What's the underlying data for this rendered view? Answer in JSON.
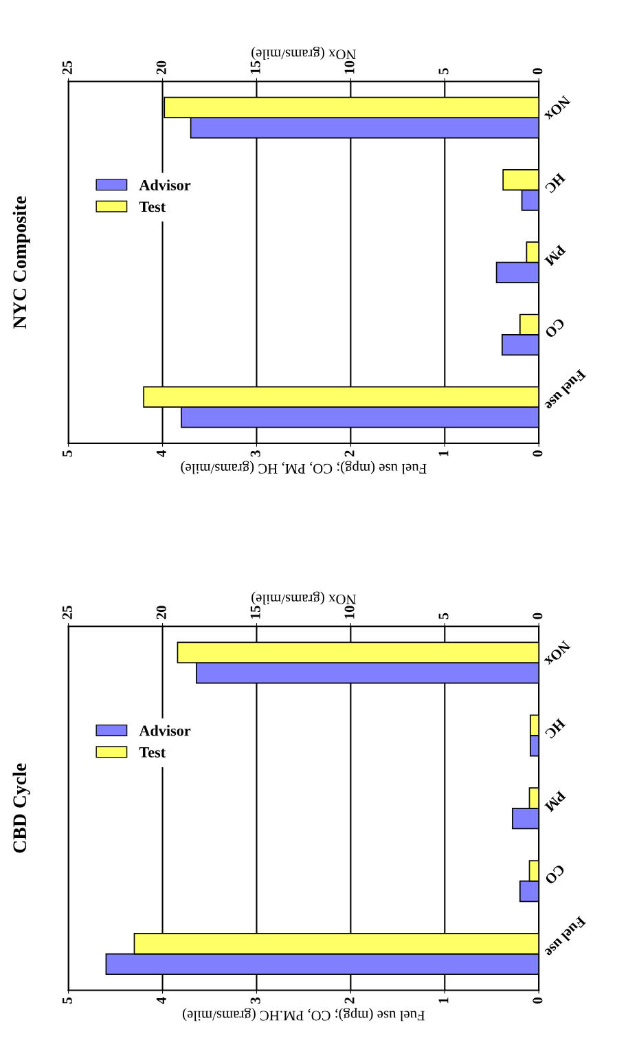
{
  "chart_data": [
    {
      "type": "bar",
      "orientation": "horizontal",
      "title": "CBD Cycle",
      "categories": [
        "NOx",
        "HC",
        "PM",
        "CO",
        "Fuel use"
      ],
      "xlabel": "Fuel use (mpg); CO, PM.HC (grams/mile)",
      "x2label": "NOx (grams/mile)",
      "xlim": [
        5,
        0
      ],
      "xticks": [
        0,
        1,
        2,
        3,
        4,
        5
      ],
      "x2lim": [
        25,
        0
      ],
      "x2ticks": [
        0,
        5,
        10,
        15,
        20,
        25
      ],
      "grid": "x",
      "legend": "left",
      "series": [
        {
          "name": "Advisor",
          "color": "#8080ff",
          "values": [
            null,
            0.09,
            0.28,
            0.2,
            4.6
          ]
        },
        {
          "name": "Test",
          "color": "#ffff66",
          "values": [
            null,
            0.09,
            0.1,
            0.1,
            4.3
          ]
        },
        {
          "color": "#8080ff",
          "axis": "x2",
          "values": [
            18.2,
            null,
            null,
            null,
            null
          ]
        },
        {
          "color": "#ffff66",
          "axis": "x2",
          "values": [
            19.2,
            null,
            null,
            null,
            null
          ]
        }
      ]
    },
    {
      "type": "bar",
      "orientation": "horizontal",
      "title": "NYC Composite",
      "categories": [
        "NOx",
        "HC",
        "PM",
        "CO",
        "Fuel use"
      ],
      "xlabel": "Fuel use (mpg); CO, PM, HC (grams/mile)",
      "x2label": "NOx (grams/mile)",
      "xlim": [
        5,
        0
      ],
      "xticks": [
        0,
        1,
        2,
        3,
        4,
        5
      ],
      "x2lim": [
        25,
        0
      ],
      "x2ticks": [
        0,
        5,
        10,
        15,
        20,
        25
      ],
      "grid": "x",
      "legend": "left",
      "series": [
        {
          "name": "Advisor",
          "color": "#8080ff",
          "values": [
            null,
            0.18,
            0.45,
            0.39,
            3.8
          ]
        },
        {
          "name": "Test",
          "color": "#ffff66",
          "values": [
            null,
            0.38,
            0.13,
            0.2,
            4.2
          ]
        },
        {
          "color": "#8080ff",
          "axis": "x2",
          "values": [
            18.5,
            null,
            null,
            null,
            null
          ]
        },
        {
          "color": "#ffff66",
          "axis": "x2",
          "values": [
            19.9,
            null,
            null,
            null,
            null
          ]
        }
      ]
    }
  ]
}
